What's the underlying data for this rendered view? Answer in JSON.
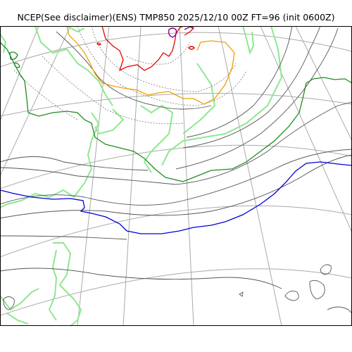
{
  "title": "NCEP(See disclaimer)(ENS) TMP850 2025/12/10 00Z FT=96 (init 0600Z)",
  "map": {
    "type": "polar stereographic contour map",
    "colors": {
      "graticule": "#aaaaaa",
      "coastline": "#8ee88e",
      "isotherm_generic": "#555555",
      "isotherm_green": "#228b22",
      "isotherm_blue": "#0000dd",
      "isotherm_orange": "#f0a000",
      "isotherm_red": "#ee0000",
      "isotherm_purple": "#8b008b"
    }
  }
}
